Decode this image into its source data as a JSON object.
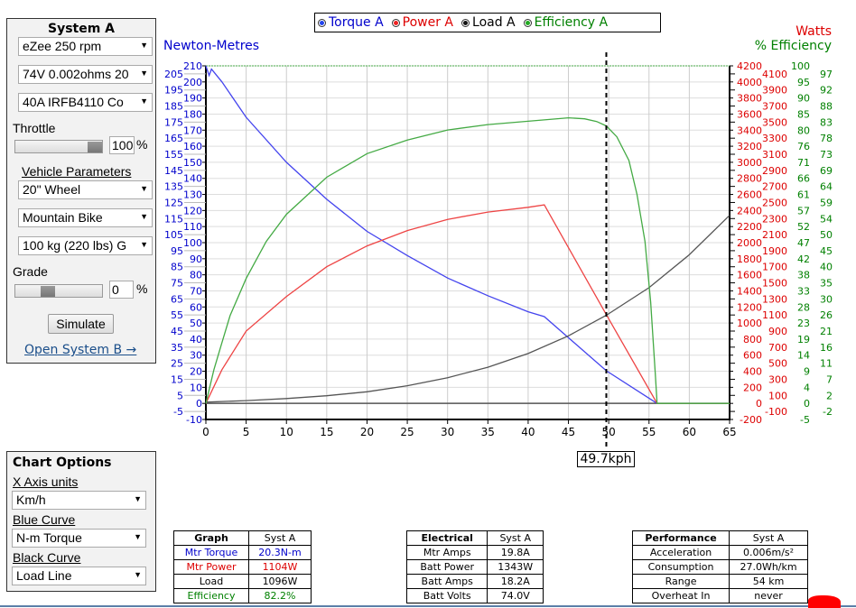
{
  "system_a": {
    "title": "System A",
    "motor": "eZee 250 rpm",
    "battery": "74V 0.002ohms 20",
    "controller": "40A IRFB4110 Co",
    "throttle_label": "Throttle",
    "throttle_value": "100",
    "throttle_fraction": 1.0,
    "percent": "%",
    "vehicle_params": "Vehicle Parameters",
    "wheel": "20\"  Wheel",
    "bike": "Mountain Bike",
    "rider": "100 kg (220 lbs) G",
    "grade_label": "Grade",
    "grade_value": "0",
    "simulate": "Simulate",
    "open_b": "Open System B →"
  },
  "chart_options": {
    "title": "Chart Options",
    "x_units_label": "X Axis units",
    "x_units": "Km/h",
    "blue_label": "Blue Curve",
    "blue": "N-m Torque",
    "black_label": "Black Curve",
    "black": "Load Line"
  },
  "legend": [
    {
      "label": "Torque A",
      "color": "#0000cc"
    },
    {
      "label": "Power A",
      "color": "#dd0000"
    },
    {
      "label": "Load A",
      "color": "#000000"
    },
    {
      "label": "Efficiency A",
      "color": "#008000"
    }
  ],
  "chart_data": {
    "type": "line",
    "left_axis_title": "Newton-Metres",
    "right_axis_title_1": "Watts",
    "right_axis_title_2": "% Efficiency",
    "xlim": [
      0,
      65
    ],
    "x_ticks": [
      0,
      5,
      10,
      15,
      20,
      25,
      30,
      35,
      40,
      45,
      50,
      55,
      60,
      65
    ],
    "left_ylim": [
      -10,
      210
    ],
    "left_step": 5,
    "right_ylim": [
      -200,
      4200
    ],
    "right_step": 100,
    "eff_tick_labels": [
      "100",
      "97",
      "95",
      "92",
      "90",
      "88",
      "85",
      "83",
      "80",
      "78",
      "76",
      "73",
      "71",
      "69",
      "66",
      "64",
      "61",
      "59",
      "57",
      "54",
      "52",
      "50",
      "47",
      "45",
      "42",
      "40",
      "38",
      "35",
      "33",
      "30",
      "28",
      "26",
      "23",
      "21",
      "19",
      "16",
      "14",
      "11",
      "9",
      "7",
      "4",
      "2",
      "0",
      "-2",
      "-5"
    ],
    "cursor_x": 49.7,
    "cursor_label": "49.7kph",
    "series": [
      {
        "name": "Torque A",
        "axis": "left",
        "color": "#4444ee",
        "points": [
          [
            0,
            210
          ],
          [
            0.4,
            204
          ],
          [
            0.7,
            208
          ],
          [
            2,
            200
          ],
          [
            5,
            178
          ],
          [
            10,
            150
          ],
          [
            15,
            127
          ],
          [
            20,
            107
          ],
          [
            25,
            92
          ],
          [
            30,
            78
          ],
          [
            35,
            67
          ],
          [
            40,
            57
          ],
          [
            42,
            54
          ],
          [
            49.7,
            20.3
          ],
          [
            56,
            0
          ],
          [
            65,
            0
          ]
        ]
      },
      {
        "name": "Power A",
        "axis": "right",
        "color": "#ee4444",
        "points": [
          [
            0,
            0
          ],
          [
            2,
            420
          ],
          [
            5,
            900
          ],
          [
            10,
            1330
          ],
          [
            15,
            1700
          ],
          [
            20,
            1960
          ],
          [
            25,
            2150
          ],
          [
            30,
            2290
          ],
          [
            35,
            2380
          ],
          [
            40,
            2440
          ],
          [
            42,
            2470
          ],
          [
            49.7,
            1104
          ],
          [
            56,
            0
          ],
          [
            65,
            0
          ]
        ]
      },
      {
        "name": "Load A",
        "axis": "right",
        "color": "#555555",
        "points": [
          [
            0,
            15
          ],
          [
            5,
            35
          ],
          [
            10,
            60
          ],
          [
            15,
            95
          ],
          [
            20,
            145
          ],
          [
            25,
            220
          ],
          [
            30,
            320
          ],
          [
            35,
            450
          ],
          [
            40,
            620
          ],
          [
            45,
            840
          ],
          [
            49.7,
            1096
          ],
          [
            55,
            1440
          ],
          [
            60,
            1850
          ],
          [
            65,
            2340
          ]
        ]
      },
      {
        "name": "Efficiency A",
        "axis": "eff",
        "color": "#44aa44",
        "points": [
          [
            0,
            0
          ],
          [
            1,
            10
          ],
          [
            2,
            18
          ],
          [
            3,
            26
          ],
          [
            5,
            37
          ],
          [
            7.5,
            48
          ],
          [
            10,
            56
          ],
          [
            15,
            67
          ],
          [
            20,
            74
          ],
          [
            25,
            78
          ],
          [
            30,
            81
          ],
          [
            35,
            82.6
          ],
          [
            40,
            83.6
          ],
          [
            45,
            84.6
          ],
          [
            47,
            84.3
          ],
          [
            48.5,
            83.5
          ],
          [
            49.7,
            82.2
          ],
          [
            51,
            79
          ],
          [
            52.5,
            72
          ],
          [
            53.5,
            62
          ],
          [
            54.5,
            48
          ],
          [
            55.2,
            30
          ],
          [
            55.8,
            8
          ],
          [
            56,
            0
          ],
          [
            65,
            0
          ]
        ]
      }
    ]
  },
  "graph_table": {
    "headers": [
      "Graph",
      "Syst A"
    ],
    "rows": [
      [
        "Mtr Torque",
        "20.3N-m"
      ],
      [
        "Mtr Power",
        "1104W"
      ],
      [
        "Load",
        "1096W"
      ],
      [
        "Efficiency",
        "82.2%"
      ]
    ],
    "row_colors": [
      "#0000cc",
      "#dd0000",
      "#000000",
      "#008000"
    ]
  },
  "electrical_table": {
    "headers": [
      "Electrical",
      "Syst A"
    ],
    "rows": [
      [
        "Mtr Amps",
        "19.8A"
      ],
      [
        "Batt Power",
        "1343W"
      ],
      [
        "Batt Amps",
        "18.2A"
      ],
      [
        "Batt Volts",
        "74.0V"
      ]
    ]
  },
  "performance_table": {
    "headers": [
      "Performance",
      "Syst A"
    ],
    "rows": [
      [
        "Acceleration",
        "0.006m/s²"
      ],
      [
        "Consumption",
        "27.0Wh/km"
      ],
      [
        "Range",
        "54 km"
      ],
      [
        "Overheat In",
        "never"
      ]
    ]
  }
}
